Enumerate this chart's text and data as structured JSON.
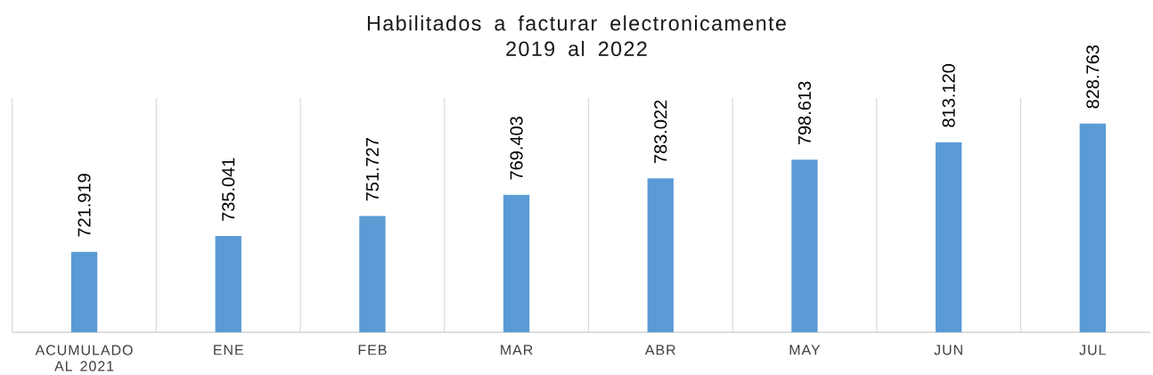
{
  "chart_data": {
    "type": "bar",
    "title": "Habilitados a facturar electronicamente 2019 al 2022",
    "categories": [
      "ACUMULADO AL 2021",
      "ENE",
      "FEB",
      "MAR",
      "ABR",
      "MAY",
      "JUN",
      "JUL"
    ],
    "values": [
      721919,
      735041,
      751727,
      769403,
      783022,
      798613,
      813120,
      828763
    ],
    "value_labels": [
      "721.919",
      "735.041",
      "751.727",
      "769.403",
      "783.022",
      "798.613",
      "813.120",
      "828.763"
    ],
    "color": "#5b9bd5",
    "ylim": [
      655000,
      850000
    ],
    "tick_labels": "x",
    "grid": "x"
  }
}
